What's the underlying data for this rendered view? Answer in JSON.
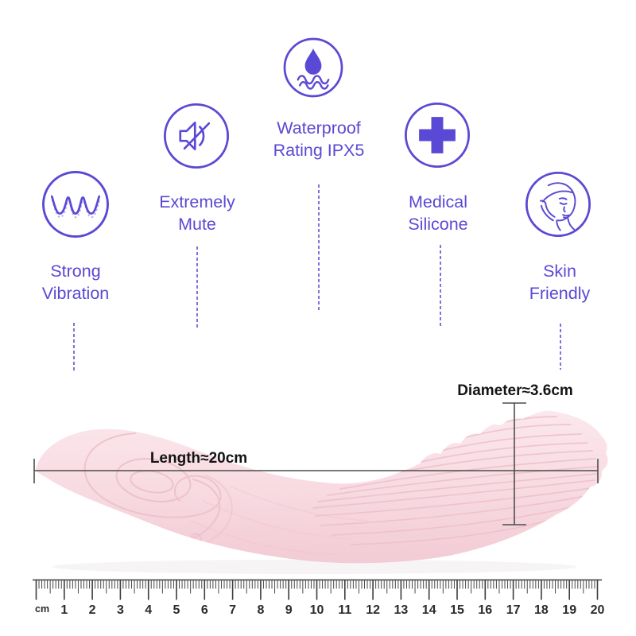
{
  "colors": {
    "accent": "#5a49d4",
    "accent_soft": "#a99df0",
    "measure_line": "#4d4d4d",
    "label_text": "#141414",
    "ruler_ink": "#2b2b2b",
    "product_pink": "#f7d8df",
    "product_detail_line": "#ecc0cb"
  },
  "features": [
    {
      "name": "strong-vibration",
      "icon": "vibration-wave-icon",
      "label_lines": [
        "Strong",
        "Vibration"
      ]
    },
    {
      "name": "extremely-mute",
      "icon": "muted-speaker-icon",
      "label_lines": [
        "Extremely",
        "Mute"
      ]
    },
    {
      "name": "waterproof-ipx5",
      "icon": "water-drop-waves-icon",
      "label_lines": [
        "Waterproof",
        "Rating IPX5"
      ]
    },
    {
      "name": "medical-silicone",
      "icon": "medical-cross-icon",
      "label_lines": [
        "Medical",
        "Silicone"
      ]
    },
    {
      "name": "skin-friendly",
      "icon": "face-profile-icon",
      "label_lines": [
        "Skin",
        "Friendly"
      ]
    }
  ],
  "product": {
    "length_label": "Length≈20cm",
    "diameter_label": "Diameter≈3.6cm"
  },
  "ruler": {
    "unit_label": "cm",
    "numbers": [
      1,
      2,
      3,
      4,
      5,
      6,
      7,
      8,
      9,
      10,
      11,
      12,
      13,
      14,
      15,
      16,
      17,
      18,
      19,
      20
    ]
  }
}
